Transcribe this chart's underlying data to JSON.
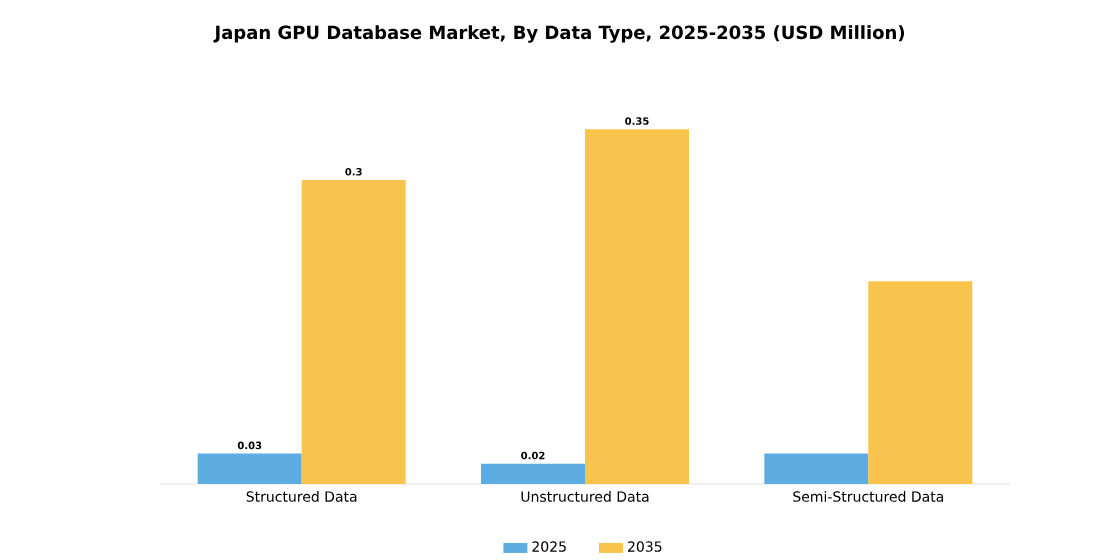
{
  "chart_data": {
    "type": "bar",
    "title": "Japan GPU Database Market, By Data Type, 2025-2035 (USD Million)",
    "categories": [
      "Structured Data",
      "Unstructured Data",
      "Semi-Structured Data"
    ],
    "series": [
      {
        "name": "2025",
        "color": "#5dade2",
        "values": [
          0.03,
          0.02,
          0.03
        ],
        "value_labels": [
          "0.03",
          "0.02",
          null
        ]
      },
      {
        "name": "2035",
        "color": "#f9c44e",
        "values": [
          0.3,
          0.35,
          0.2
        ],
        "value_labels": [
          "0.3",
          "0.35",
          null
        ]
      }
    ],
    "legend": "bottom"
  }
}
